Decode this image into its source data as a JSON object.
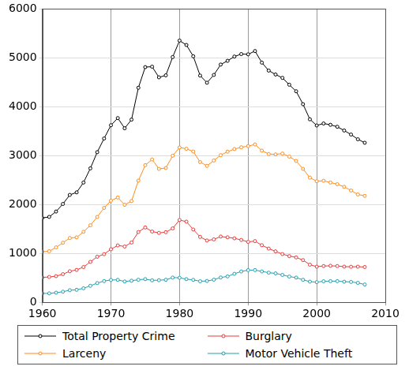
{
  "chart_data": {
    "type": "line",
    "x": [
      1960,
      1961,
      1962,
      1963,
      1964,
      1965,
      1966,
      1967,
      1968,
      1969,
      1970,
      1971,
      1972,
      1973,
      1974,
      1975,
      1976,
      1977,
      1978,
      1979,
      1980,
      1981,
      1982,
      1983,
      1984,
      1985,
      1986,
      1987,
      1988,
      1989,
      1990,
      1991,
      1992,
      1993,
      1994,
      1995,
      1996,
      1997,
      1998,
      1999,
      2000,
      2001,
      2002,
      2003,
      2004,
      2005,
      2006,
      2007
    ],
    "series": [
      {
        "name": "Total Property Crime",
        "color": "#000000",
        "marker": "circle",
        "line_style": "solid",
        "values": [
          1726,
          1747,
          1857,
          2012,
          2197,
          2249,
          2450,
          2740,
          3071,
          3351,
          3622,
          3768,
          3560,
          3737,
          4389,
          4811,
          4820,
          4602,
          4643,
          5017,
          5353,
          5264,
          5033,
          4638,
          4492,
          4651,
          4863,
          4940,
          5027,
          5078,
          5073,
          5140,
          4903,
          4740,
          4660,
          4591,
          4451,
          4317,
          4053,
          3744,
          3618,
          3658,
          3631,
          3591,
          3514,
          3432,
          3335,
          3264
        ]
      },
      {
        "name": "Larceny",
        "color": "#ff8c1a",
        "marker": "circle",
        "line_style": "solid",
        "values": [
          1035,
          1045,
          1124,
          1219,
          1315,
          1329,
          1442,
          1575,
          1746,
          1931,
          2079,
          2145,
          1994,
          2071,
          2489,
          2805,
          2922,
          2730,
          2747,
          2999,
          3167,
          3140,
          3085,
          2869,
          2791,
          2901,
          3010,
          3081,
          3135,
          3171,
          3195,
          3229,
          3103,
          3033,
          3026,
          3043,
          2980,
          2892,
          2729,
          2550,
          2477,
          2486,
          2450,
          2416,
          2362,
          2287,
          2207,
          2178
        ]
      },
      {
        "name": "Burglary",
        "color": "#e83a3a",
        "marker": "circle",
        "line_style": "solid",
        "values": [
          509,
          519,
          535,
          576,
          635,
          663,
          721,
          827,
          932,
          985,
          1085,
          1164,
          1141,
          1223,
          1438,
          1532,
          1448,
          1420,
          1435,
          1512,
          1684,
          1650,
          1489,
          1338,
          1264,
          1287,
          1345,
          1330,
          1309,
          1276,
          1236,
          1252,
          1168,
          1099,
          1042,
          987,
          945,
          919,
          863,
          770,
          729,
          742,
          747,
          741,
          730,
          727,
          729,
          722
        ]
      },
      {
        "name": "Motor Vehicle Theft",
        "color": "#20a0b0",
        "marker": "circle",
        "line_style": "solid",
        "values": [
          183,
          183,
          197,
          217,
          247,
          256,
          287,
          338,
          393,
          435,
          457,
          459,
          426,
          442,
          462,
          474,
          450,
          452,
          461,
          506,
          502,
          474,
          459,
          431,
          437,
          463,
          508,
          530,
          583,
          631,
          658,
          659,
          632,
          606,
          592,
          560,
          526,
          506,
          460,
          423,
          412,
          431,
          433,
          433,
          422,
          417,
          398,
          364
        ]
      }
    ],
    "xlim": [
      1960,
      2010
    ],
    "xticks": [
      1960,
      1970,
      1980,
      1990,
      2000,
      2010
    ],
    "ylim": [
      0,
      6000
    ],
    "yticks": [
      0,
      1000,
      2000,
      3000,
      4000,
      5000,
      6000
    ],
    "grid": true,
    "legend": "bottom"
  }
}
